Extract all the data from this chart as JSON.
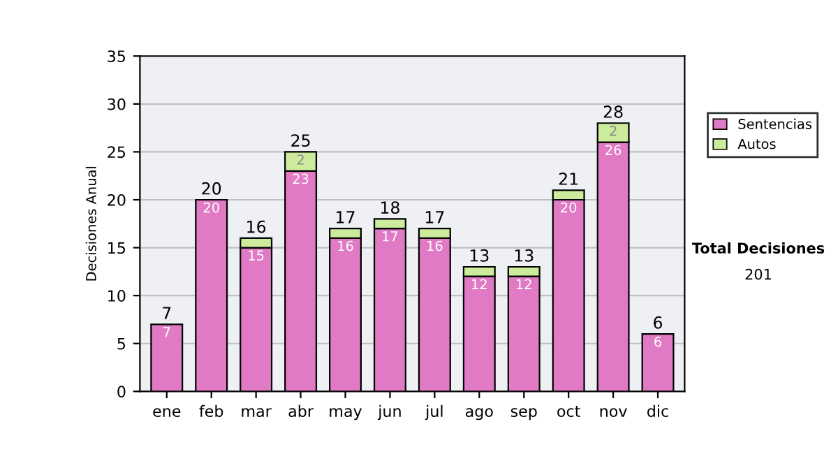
{
  "chart_data": {
    "type": "bar",
    "stacked": true,
    "ylabel": "Decisiones Anual",
    "categories": [
      "ene",
      "feb",
      "mar",
      "abr",
      "may",
      "jun",
      "jul",
      "ago",
      "sep",
      "oct",
      "nov",
      "dic"
    ],
    "series": [
      {
        "name": "Sentencias",
        "color": "#e07ac4",
        "values": [
          7,
          20,
          15,
          23,
          16,
          17,
          16,
          12,
          12,
          20,
          26,
          6
        ],
        "value_labels": [
          "7",
          "20",
          "15",
          "23",
          "16",
          "17",
          "16",
          "12",
          "12",
          "20",
          "26",
          "6"
        ]
      },
      {
        "name": "Autos",
        "color": "#cdeb9c",
        "values": [
          null,
          null,
          1,
          2,
          1,
          1,
          1,
          1,
          1,
          1,
          2,
          null
        ],
        "value_labels": [
          null,
          null,
          null,
          "2",
          null,
          null,
          null,
          null,
          null,
          null,
          "2",
          null
        ]
      }
    ],
    "totals": [
      "7",
      "20",
      "16",
      "25",
      "17",
      "18",
      "17",
      "13",
      "13",
      "21",
      "28",
      "6"
    ],
    "ylim": [
      0,
      35
    ],
    "yticks": [
      0,
      5,
      10,
      15,
      20,
      25,
      30,
      35
    ],
    "grid": "y",
    "legend": "right",
    "annotations": [
      "Total Decisiones",
      "201"
    ]
  }
}
